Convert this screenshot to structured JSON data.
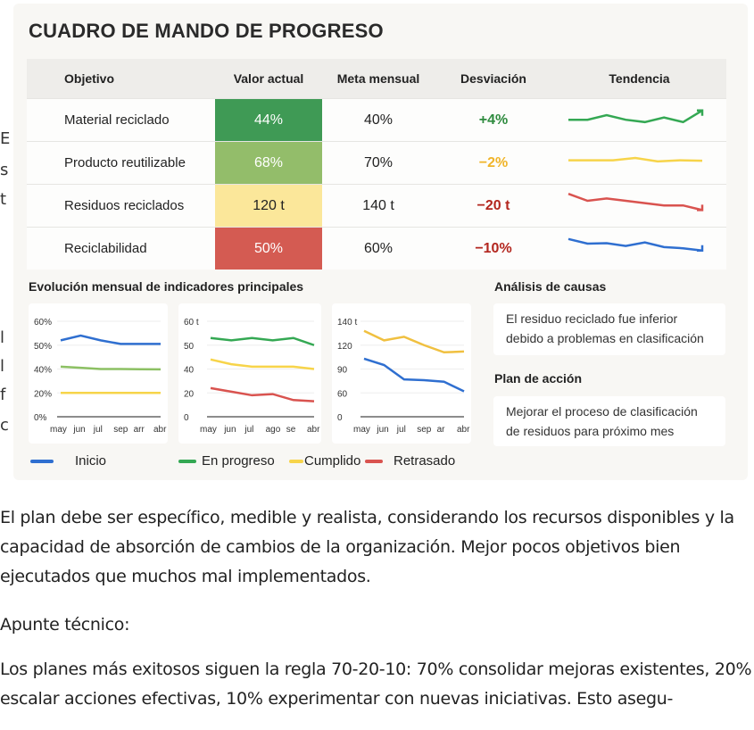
{
  "dashboard": {
    "title": "CUADRO DE MANDO DE PROGRESO",
    "columns": [
      "Objetivo",
      "Valor actual",
      "Meta mensual",
      "Desviación",
      "Tendencia"
    ],
    "rows": [
      {
        "objetivo": "Material reciclado",
        "valor": "44%",
        "meta": "40%",
        "desviacion": "+4%",
        "cell_color": "#3f9a55",
        "dev_color": "#2e8b3e",
        "trend_color": "#34a853",
        "trend": [
          3,
          3,
          5,
          3,
          2,
          4,
          2,
          7
        ],
        "trend_dir": "up"
      },
      {
        "objetivo": "Producto reutilizable",
        "valor": "68%",
        "meta": "70%",
        "desviacion": "−2%",
        "cell_color": "#93bd6a",
        "dev_color": "#f0b429",
        "trend_color": "#f7d44a",
        "trend": [
          4,
          4,
          4,
          5,
          3.5,
          4,
          3.8
        ],
        "trend_dir": "flat"
      },
      {
        "objetivo": "Residuos reciclados",
        "valor": "120 t",
        "meta": "140 t",
        "desviacion": "−20 t",
        "cell_color": "#fbe79a",
        "dev_color": "#b3261e",
        "trend_color": "#d9534f",
        "trend": [
          8,
          5,
          6,
          5,
          4,
          3,
          3,
          1
        ],
        "trend_dir": "down",
        "dark_text": true
      },
      {
        "objetivo": "Reciclabilidad",
        "valor": "50%",
        "meta": "60%",
        "desviacion": "−10%",
        "cell_color": "#d45b52",
        "dev_color": "#b3261e",
        "trend_color": "#2f6fd0",
        "trend": [
          7,
          5,
          5.2,
          4,
          5.5,
          3.5,
          3,
          2
        ],
        "trend_dir": "down"
      }
    ]
  },
  "left_fragments": [
    "E",
    "s",
    "t",
    "l",
    "l",
    "f",
    "c"
  ],
  "evolution": {
    "title": "Evolución mensual de indicadores principales",
    "legend": [
      {
        "label": "Inicio",
        "color": "#2f6fd0"
      },
      {
        "label": "En progreso",
        "color": "#34a853"
      },
      {
        "label": "Cumplido",
        "color": "#f7d44a"
      },
      {
        "label": "Retrasado",
        "color": "#d9534f"
      }
    ]
  },
  "chart_data": [
    {
      "type": "line",
      "x": [
        "may",
        "jun",
        "jul",
        "sep",
        "arr",
        "abr"
      ],
      "yticks": [
        "0%",
        "20%",
        "40%",
        "50%",
        "60%"
      ],
      "ytick_values": [
        0,
        20,
        40,
        50,
        60
      ],
      "series": [
        {
          "color": "#2f6fd0",
          "values": [
            52,
            54,
            52,
            50.5,
            50.5,
            50.5
          ]
        },
        {
          "color": "#8cc063",
          "values": [
            41,
            40.5,
            40,
            40,
            39.8,
            39.7
          ]
        },
        {
          "color": "#f7d44a",
          "values": [
            20,
            20,
            20,
            20,
            20,
            20
          ]
        }
      ]
    },
    {
      "type": "line",
      "x": [
        "may",
        "jun",
        "jul",
        "ago",
        "se",
        "abr"
      ],
      "yticks": [
        "0",
        "20",
        "40",
        "50",
        "60 t"
      ],
      "ytick_values": [
        0,
        20,
        40,
        50,
        60
      ],
      "series": [
        {
          "color": "#34a853",
          "values": [
            53,
            52,
            53,
            52,
            53,
            50
          ]
        },
        {
          "color": "#f7d44a",
          "values": [
            44,
            42,
            41,
            41,
            41,
            40
          ]
        },
        {
          "color": "#d9534f",
          "values": [
            24,
            21,
            18,
            19,
            14,
            13
          ]
        }
      ]
    },
    {
      "type": "line",
      "x": [
        "may",
        "jun",
        "jul",
        "sep",
        "ar",
        "abr"
      ],
      "yticks": [
        "0",
        "60",
        "90",
        "120",
        "140 t"
      ],
      "ytick_values": [
        0,
        60,
        90,
        120,
        140
      ],
      "series": [
        {
          "color": "#f0c040",
          "values": [
            132,
            124,
            127,
            120,
            111,
            112
          ]
        },
        {
          "color": "#2f6fd0",
          "values": [
            103,
            95,
            77,
            76,
            74,
            62
          ]
        }
      ]
    }
  ],
  "analysis": {
    "causes_title": "Análisis de causas",
    "causes_text": "El residuo reciclado fue inferior debido a problemas en clasificación",
    "plan_title": "Plan de acción",
    "plan_text": "Mejorar el proceso de clasificación de residuos para próximo mes"
  },
  "body": {
    "para1": "El plan debe ser específico, medible y realista, considerando los recursos disponibles y la capacidad de absorción de cambios de la organización. Mejor pocos objetivos bien ejecutados que muchos mal implementados.",
    "heading": "Apunte técnico:",
    "para2": "Los planes más exitosos siguen la regla 70-20-10: 70% consolidar mejoras existentes, 20% escalar acciones efectivas, 10% experimentar con nuevas iniciativas. Esto asegu-"
  }
}
